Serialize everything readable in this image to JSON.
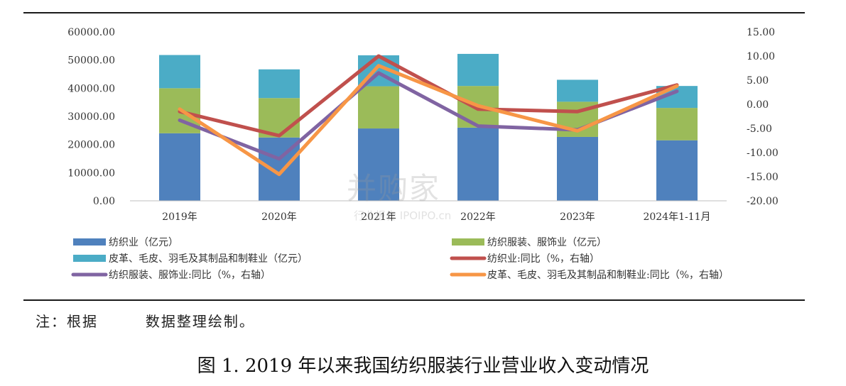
{
  "note": "注：根据        数据整理绘制。",
  "caption": "图 1. 2019 年以来我国纺织服装行业营业收入变动情况",
  "watermark": {
    "main": "并购家",
    "sub": "行业报告 IPOIPO.cn"
  },
  "chart_data": {
    "type": "bar",
    "stacked": true,
    "categories": [
      "2019年",
      "2020年",
      "2021年",
      "2022年",
      "2023年",
      "2024年1-11月"
    ],
    "left_axis": {
      "range": [
        0,
        60000
      ],
      "ticks": [
        "0.00",
        "10000.00",
        "20000.00",
        "30000.00",
        "40000.00",
        "50000.00",
        "60000.00"
      ]
    },
    "right_axis": {
      "range": [
        -20,
        15
      ],
      "ticks": [
        "-20.00",
        "-15.00",
        "-10.00",
        "-5.00",
        "0.00",
        "5.00",
        "10.00",
        "15.00"
      ]
    },
    "bar_series": [
      {
        "name": "纺织业（亿元）",
        "color": "#4f81bd",
        "values": [
          24000,
          22500,
          25700,
          26000,
          22700,
          21500
        ]
      },
      {
        "name": "纺织服装、服饰业（亿元）",
        "color": "#9bbb59",
        "values": [
          16000,
          14000,
          15000,
          14800,
          12500,
          11500
        ]
      },
      {
        "name": "皮革、毛皮、羽毛及其制品和制鞋业（亿元）",
        "color": "#4bacc6",
        "values": [
          11800,
          10200,
          11000,
          11400,
          7800,
          7800
        ]
      }
    ],
    "line_series": [
      {
        "name": "纺织业:同比（%，右轴）",
        "color": "#c0504d",
        "values": [
          -1.5,
          -6.5,
          10.0,
          -1.0,
          -1.5,
          4.0
        ]
      },
      {
        "name": "纺织服装、服饰业:同比（%，右轴）",
        "color": "#8064a2",
        "values": [
          -3.3,
          -11.3,
          6.5,
          -4.5,
          -5.3,
          2.7
        ]
      },
      {
        "name": "皮革、毛皮、羽毛及其制品和制鞋业:同比（%，右轴）",
        "color": "#f79646",
        "values": [
          -1.0,
          -14.5,
          8.0,
          -0.3,
          -5.5,
          3.8
        ]
      }
    ],
    "legend_position": "bottom",
    "grid": false
  }
}
